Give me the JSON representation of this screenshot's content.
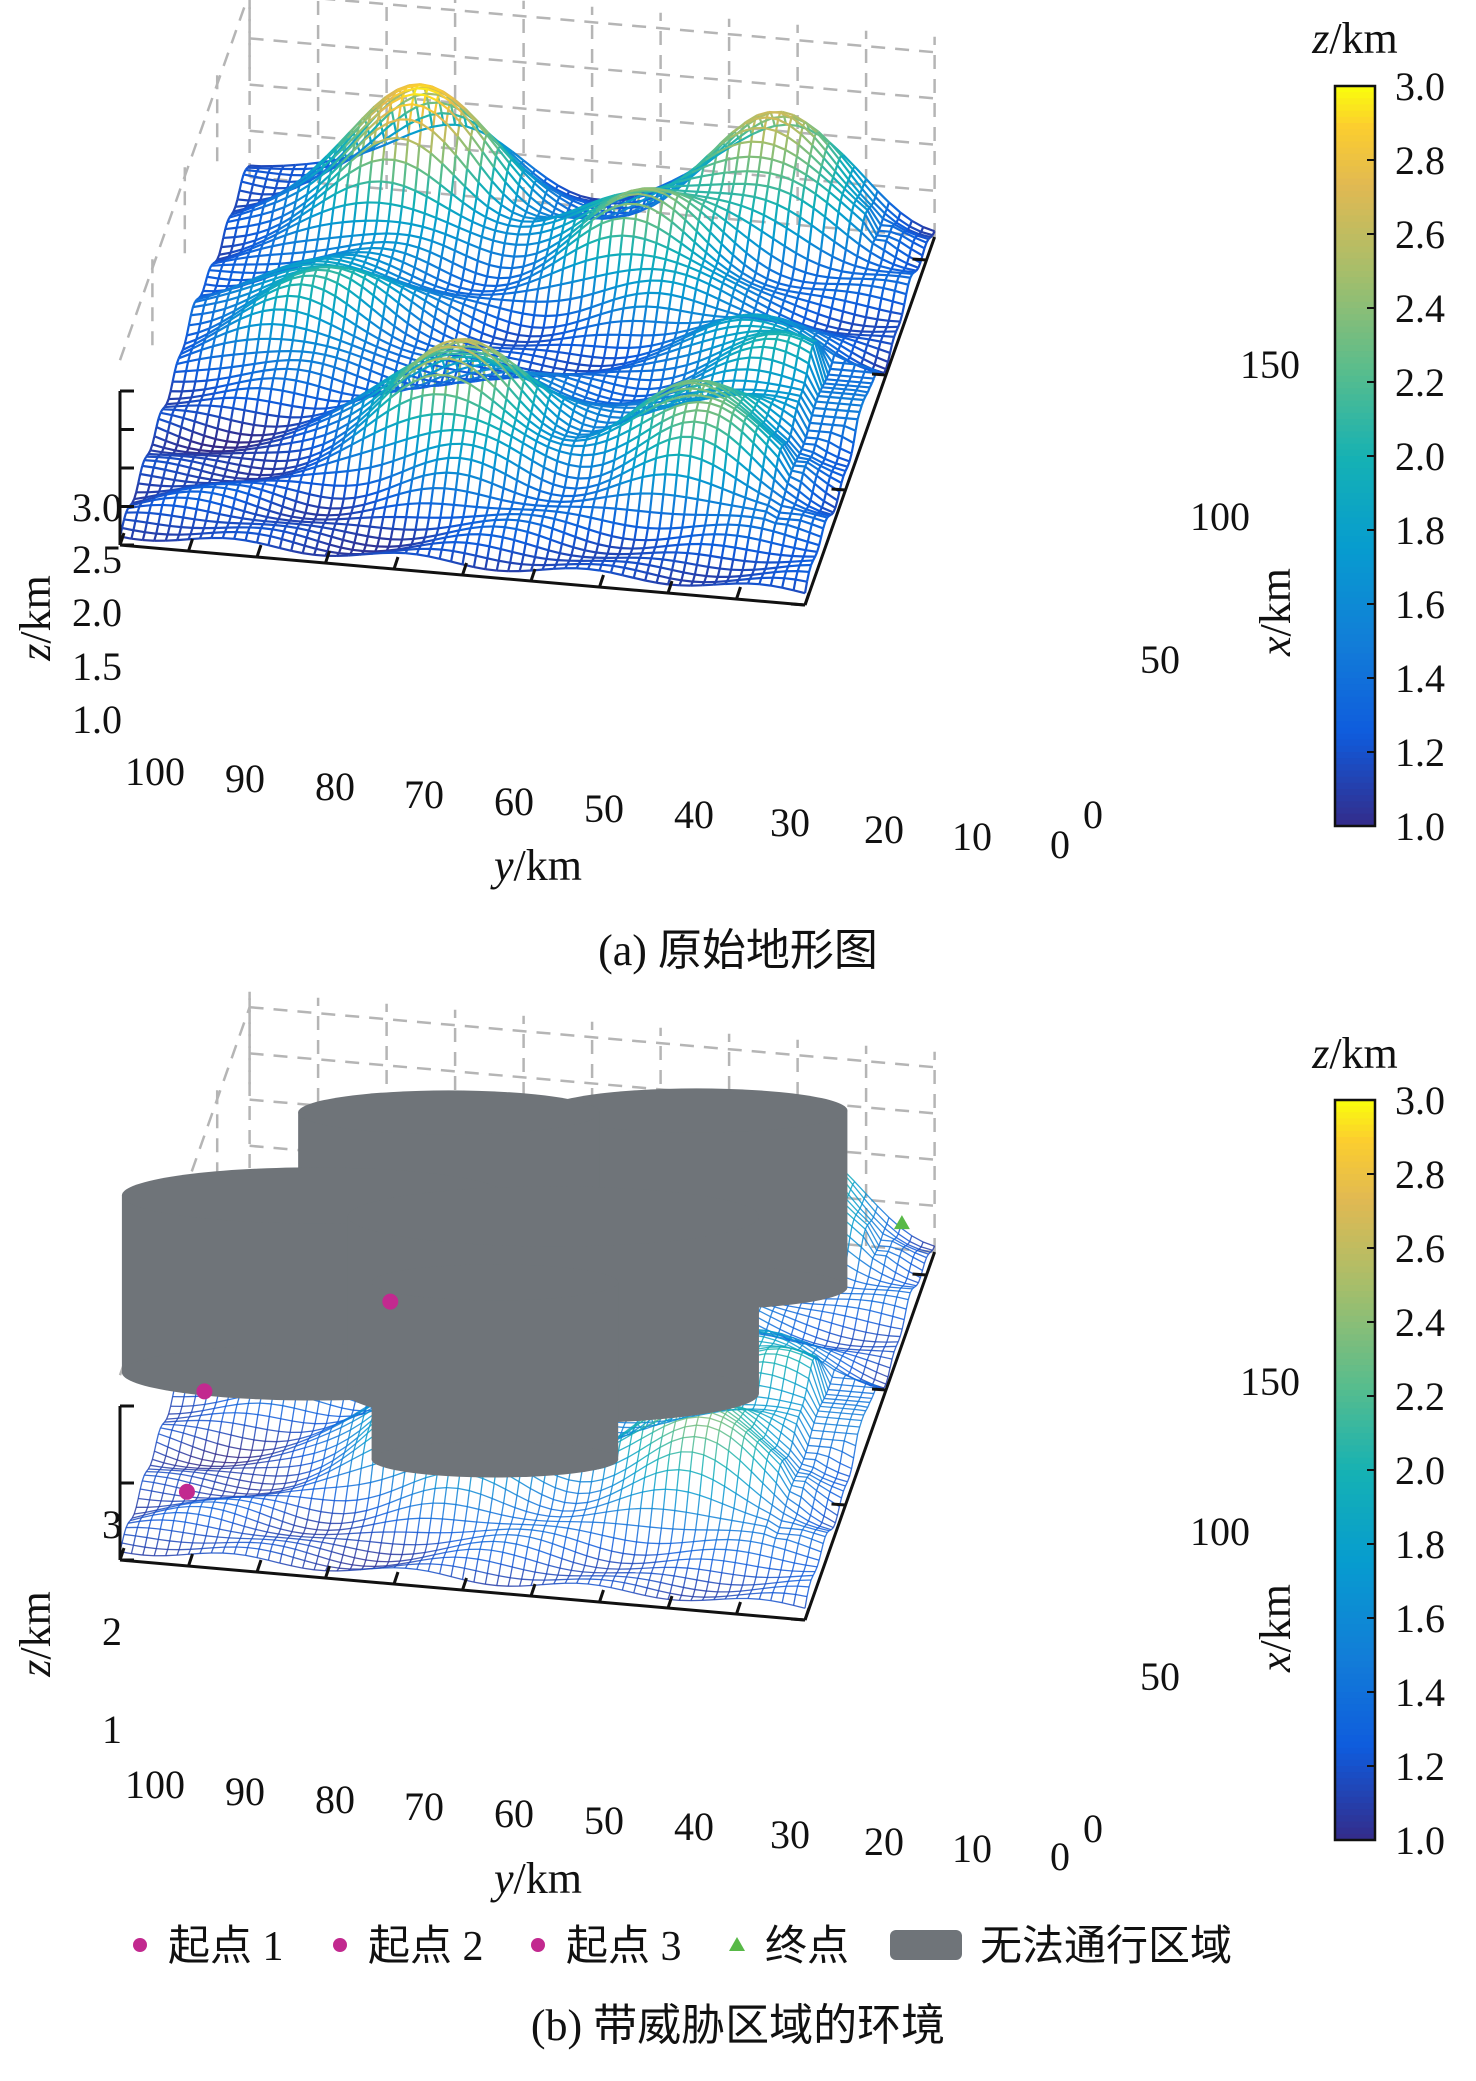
{
  "colors": {
    "colormap": "parula",
    "obstacle": "#6f7479",
    "start_marker": "#c2298f",
    "end_marker": "#58b947",
    "grid": "#b5b5b5"
  },
  "chart_data": [
    {
      "type": "surface",
      "panel": "a",
      "caption": "(a) 原始地形图",
      "x_axis": {
        "label_var": "x",
        "label_unit": "/km",
        "ticks": [
          "0",
          "50",
          "100",
          "150"
        ],
        "range": [
          0,
          160
        ]
      },
      "y_axis": {
        "label_var": "y",
        "label_unit": "/km",
        "ticks": [
          "100",
          "90",
          "80",
          "70",
          "60",
          "50",
          "40",
          "30",
          "20",
          "10",
          "0"
        ],
        "range": [
          0,
          100
        ]
      },
      "z_axis": {
        "label_var": "z",
        "label_unit": "/km",
        "ticks": [
          "3.0",
          "2.5",
          "2.0",
          "1.5",
          "1.0"
        ],
        "range": [
          1.0,
          3.0
        ]
      },
      "colorbar": {
        "label_var": "z",
        "label_unit": "/km",
        "ticks": [
          "3.0",
          "2.8",
          "2.6",
          "2.4",
          "2.2",
          "2.0",
          "1.8",
          "1.6",
          "1.4",
          "1.2",
          "1.0"
        ],
        "range": [
          1.0,
          3.0
        ]
      },
      "peaks": [
        {
          "x": 140,
          "y": 73,
          "z": 3.0
        },
        {
          "x": 120,
          "y": 38,
          "z": 2.3
        },
        {
          "x": 150,
          "y": 22,
          "z": 2.5
        },
        {
          "x": 45,
          "y": 55,
          "z": 2.6
        },
        {
          "x": 40,
          "y": 20,
          "z": 2.3
        },
        {
          "x": 90,
          "y": 82,
          "z": 2.1
        },
        {
          "x": 80,
          "y": 15,
          "z": 2.0
        }
      ]
    },
    {
      "type": "surface",
      "panel": "b",
      "caption": "(b) 带威胁区域的环境",
      "x_axis": {
        "label_var": "x",
        "label_unit": "/km",
        "ticks": [
          "0",
          "50",
          "100",
          "150"
        ],
        "range": [
          0,
          160
        ]
      },
      "y_axis": {
        "label_var": "y",
        "label_unit": "/km",
        "ticks": [
          "100",
          "90",
          "80",
          "70",
          "60",
          "50",
          "40",
          "30",
          "20",
          "10",
          "0"
        ],
        "range": [
          0,
          100
        ]
      },
      "z_axis": {
        "label_var": "z",
        "label_unit": "/km",
        "ticks": [
          "3",
          "2",
          "1"
        ],
        "range": [
          1,
          3
        ]
      },
      "colorbar": {
        "label_var": "z",
        "label_unit": "/km",
        "ticks": [
          "3.0",
          "2.8",
          "2.6",
          "2.4",
          "2.2",
          "2.0",
          "1.8",
          "1.6",
          "1.4",
          "1.2",
          "1.0"
        ],
        "range": [
          1.0,
          3.0
        ]
      },
      "points": [
        {
          "name": "起点 1",
          "x": 15,
          "y": 92,
          "z": 1.5
        },
        {
          "name": "起点 2",
          "x": 45,
          "y": 93,
          "z": 1.9
        },
        {
          "name": "起点 3",
          "x": 80,
          "y": 70,
          "z": 2.2
        },
        {
          "name": "终点",
          "x": 145,
          "y": 3,
          "z": 1.8
        }
      ],
      "threat_areas": [
        {
          "center_x": 110,
          "center_y": 65,
          "radius": 22
        },
        {
          "center_x": 120,
          "center_y": 30,
          "radius": 22
        },
        {
          "center_x": 70,
          "center_y": 80,
          "radius": 28
        },
        {
          "center_x": 70,
          "center_y": 45,
          "radius": 30
        },
        {
          "center_x": 40,
          "center_y": 50,
          "radius": 18
        }
      ],
      "legend": [
        "起点 1",
        "起点 2",
        "起点 3",
        "终点",
        "无法通行区域"
      ]
    }
  ]
}
